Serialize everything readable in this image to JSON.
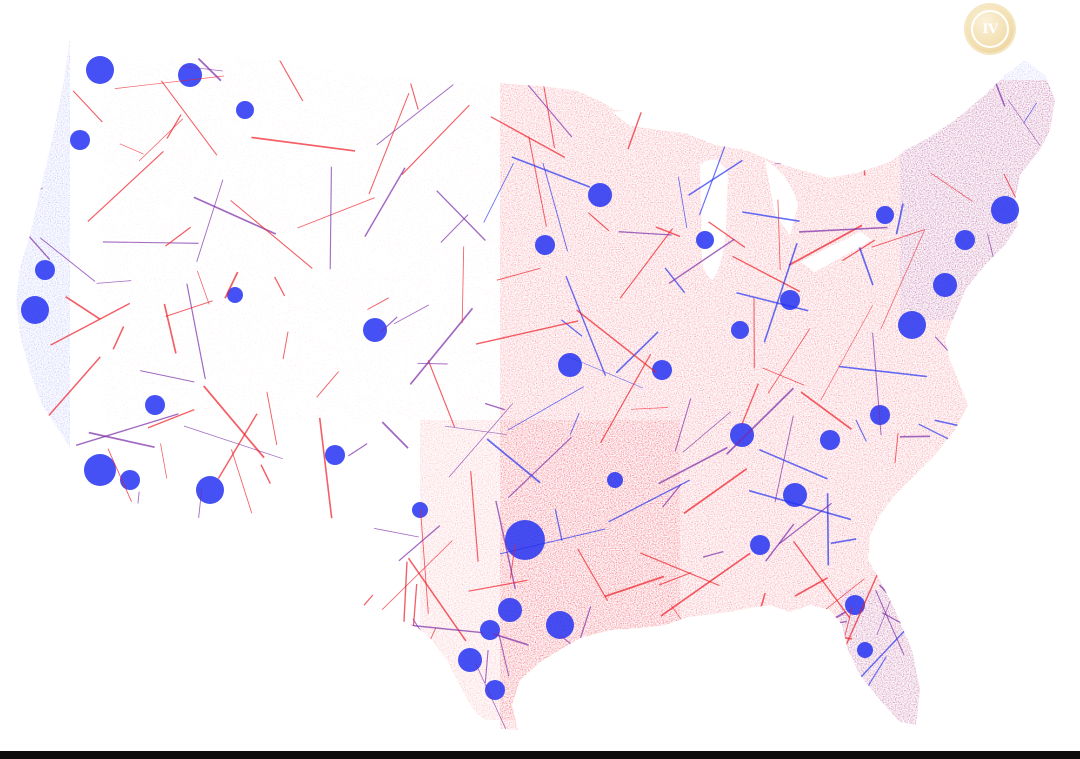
{
  "map": {
    "subject": "contiguous-united-states",
    "colors": {
      "red": "#ee1c25",
      "blue": "#2432f2",
      "purple": "#7a2aa8",
      "background": "#ffffff"
    }
  },
  "watermark": {
    "text": "IV",
    "icon": "coin-logo-icon"
  },
  "bottom_bar": {
    "color": "#0d0d0d"
  }
}
